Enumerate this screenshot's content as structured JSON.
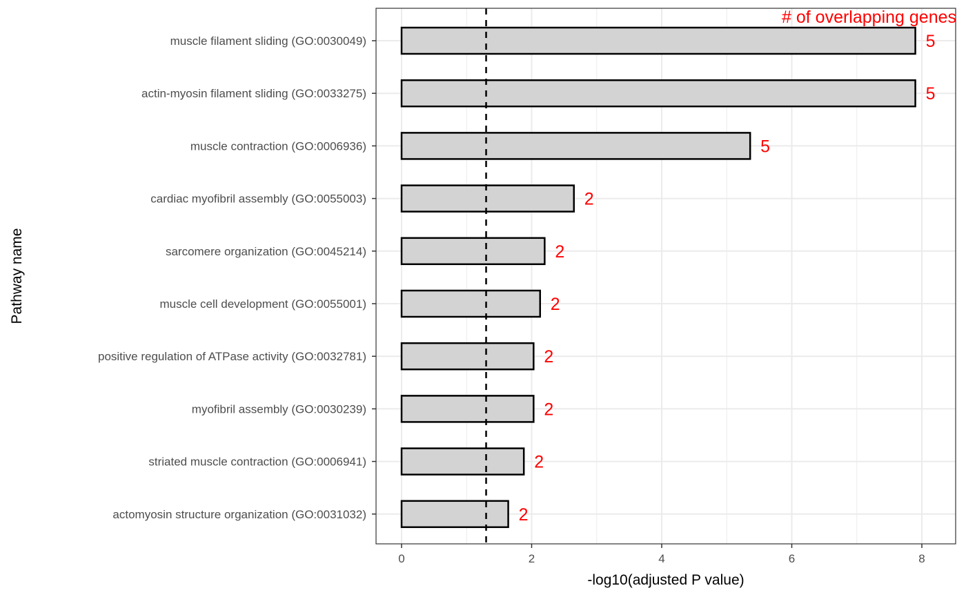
{
  "chart_data": {
    "type": "bar",
    "orientation": "horizontal",
    "title": "",
    "xlabel": "-log10(adjusted P value)",
    "ylabel": "Pathway name",
    "annotation_title": "# of overlapping genes",
    "xlim": [
      -0.4,
      8.5
    ],
    "xticks": [
      0,
      2,
      4,
      6,
      8
    ],
    "grid": true,
    "threshold_line": 1.3,
    "categories": [
      "muscle filament sliding (GO:0030049)",
      "actin-myosin filament sliding (GO:0033275)",
      "muscle contraction (GO:0006936)",
      "cardiac myofibril assembly (GO:0055003)",
      "sarcomere organization (GO:0045214)",
      "muscle cell development (GO:0055001)",
      "positive regulation of ATPase activity (GO:0032781)",
      "myofibril assembly (GO:0030239)",
      "striated muscle contraction (GO:0006941)",
      "actomyosin structure organization (GO:0031032)"
    ],
    "values": [
      7.9,
      7.9,
      5.36,
      2.65,
      2.2,
      2.13,
      2.03,
      2.03,
      1.88,
      1.64
    ],
    "counts": [
      5,
      5,
      5,
      2,
      2,
      2,
      2,
      2,
      2,
      2
    ],
    "colors": {
      "bar_fill": "#d3d3d3",
      "bar_stroke": "#000000",
      "count_text": "#ff0000",
      "grid": "#ebebeb",
      "panel_border": "#333333",
      "threshold": "#000000"
    }
  }
}
